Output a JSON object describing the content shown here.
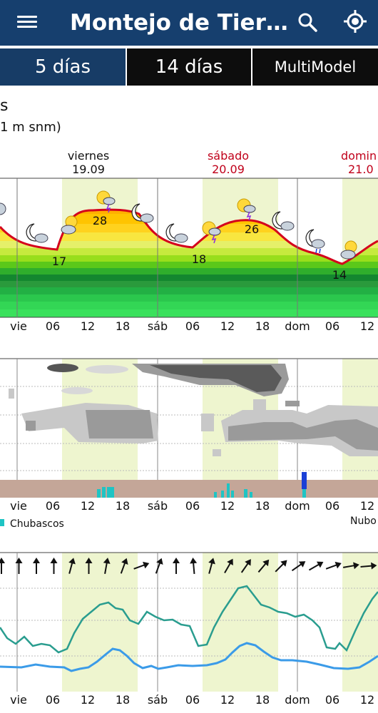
{
  "app": {
    "title": "Montejo de Tier…",
    "menu_icon": "hamburger-menu-icon",
    "search_icon": "search-icon",
    "location_icon": "gps-location-icon",
    "bar_color": "#163f6e"
  },
  "tabs": [
    {
      "label": "5 días",
      "selected": true
    },
    {
      "label": "14 días",
      "selected": false
    },
    {
      "label": "MultiModel",
      "selected": false
    }
  ],
  "header": {
    "subtitle_partial": "s",
    "elevation_partial": "1 m snm)"
  },
  "days": [
    {
      "name": "viernes",
      "date": "19.09",
      "color": "#111111"
    },
    {
      "name": "sábado",
      "date": "20.09",
      "color": "#c0001a"
    },
    {
      "name": "domin",
      "date": "21.0",
      "color": "#c0001a"
    }
  ],
  "x_axis_labels": [
    "vie",
    "06",
    "12",
    "18",
    "sáb",
    "06",
    "12",
    "18",
    "dom",
    "06",
    "12"
  ],
  "temperature": {
    "min_max_labels": [
      "17",
      "28",
      "18",
      "26",
      "14"
    ],
    "weather_icons": [
      "moon-cloud-icon",
      "moon-cloud-icon",
      "sun-cloud-icon",
      "sun-thunder-icon",
      "moon-cloud-icon",
      "moon-cloud-icon",
      "sun-cloud-icon",
      "sun-thunder-icon",
      "moon-cloud-icon",
      "moon-rain-icon",
      "sun-cloud-icon"
    ]
  },
  "precip_panel": {
    "legend_showers": "Chubascos",
    "legend_clouds_partial": "Nubo",
    "shower_color": "#1fc4c4",
    "rain_color": "#1a3fd6"
  },
  "wind_panel": {
    "arrow_icon": "wind-direction-arrow-icon",
    "gust_color": "#2a9d8f",
    "speed_color": "#3b9be8"
  }
}
